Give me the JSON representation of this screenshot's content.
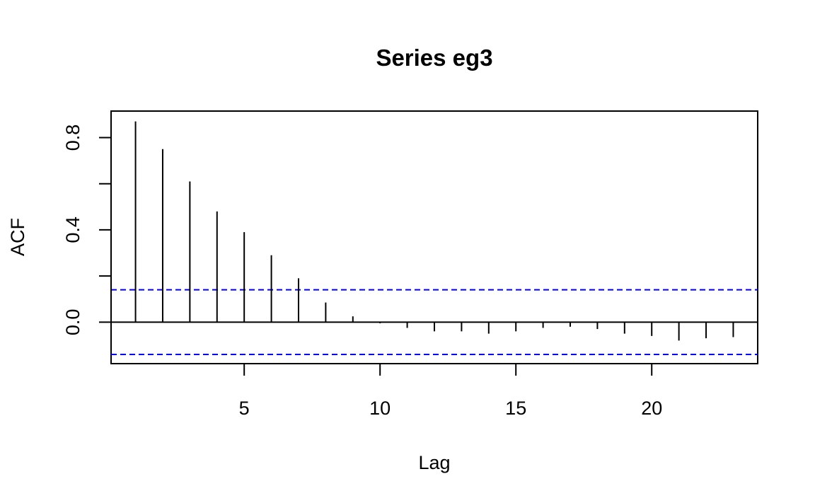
{
  "chart_data": {
    "type": "bar",
    "title": "Series eg3",
    "xlabel": "Lag",
    "ylabel": "ACF",
    "lags": [
      1,
      2,
      3,
      4,
      5,
      6,
      7,
      8,
      9,
      10,
      11,
      12,
      13,
      14,
      15,
      16,
      17,
      18,
      19,
      20,
      21,
      22,
      23
    ],
    "values": [
      0.87,
      0.75,
      0.61,
      0.48,
      0.39,
      0.29,
      0.19,
      0.085,
      0.025,
      -0.005,
      -0.025,
      -0.04,
      -0.04,
      -0.05,
      -0.04,
      -0.025,
      -0.02,
      -0.03,
      -0.05,
      -0.06,
      -0.08,
      -0.07,
      -0.065
    ],
    "xlim": [
      0.1,
      23.9
    ],
    "ylim": [
      -0.18,
      0.915
    ],
    "xticks": [
      5,
      10,
      15,
      20
    ],
    "xtick_labels": [
      "5",
      "10",
      "15",
      "20"
    ],
    "yticks": [
      0.0,
      0.2,
      0.4,
      0.6,
      0.8
    ],
    "ytick_labels": [
      "0.0",
      "",
      "0.4",
      "",
      "0.8"
    ],
    "conf_limit": 0.14,
    "conf_color": "#0000ff",
    "spike_color": "#000000",
    "grid": false
  }
}
